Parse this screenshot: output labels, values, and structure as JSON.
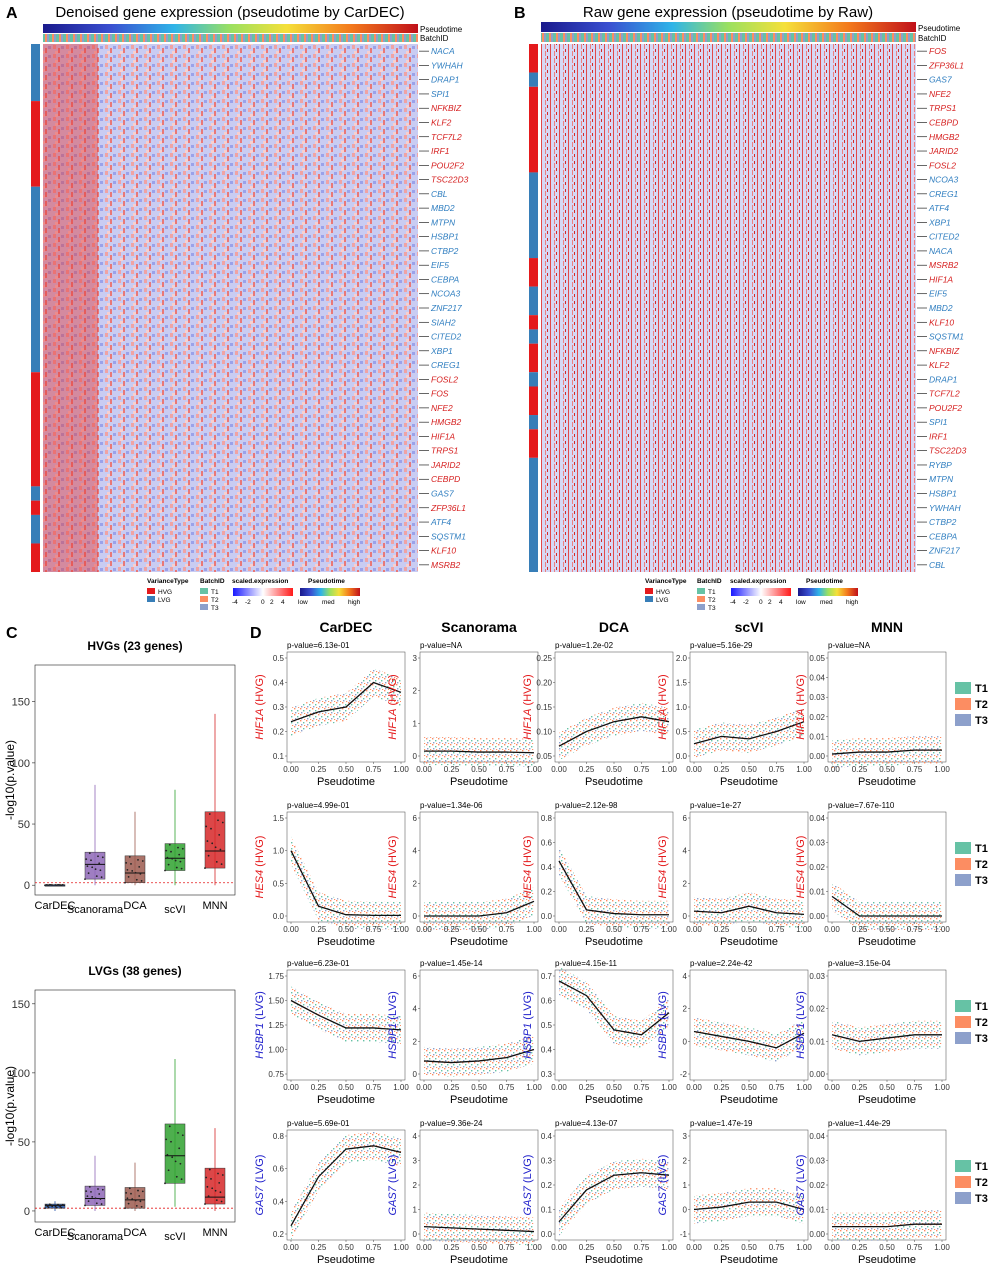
{
  "panel_letters": [
    "A",
    "B",
    "C",
    "D"
  ],
  "panel_a": {
    "title": "Denoised gene expression (pseudotime by CarDEC)",
    "annotation_labels": [
      "Pseudotime",
      "BatchID"
    ],
    "genes": [
      {
        "name": "NACA",
        "type": "LVG"
      },
      {
        "name": "YWHAH",
        "type": "LVG"
      },
      {
        "name": "DRAP1",
        "type": "LVG"
      },
      {
        "name": "SPI1",
        "type": "LVG"
      },
      {
        "name": "NFKBIZ",
        "type": "HVG"
      },
      {
        "name": "KLF2",
        "type": "HVG"
      },
      {
        "name": "TCF7L2",
        "type": "HVG"
      },
      {
        "name": "IRF1",
        "type": "HVG"
      },
      {
        "name": "POU2F2",
        "type": "HVG"
      },
      {
        "name": "TSC22D3",
        "type": "HVG"
      },
      {
        "name": "CBL",
        "type": "LVG"
      },
      {
        "name": "MBD2",
        "type": "LVG"
      },
      {
        "name": "MTPN",
        "type": "LVG"
      },
      {
        "name": "HSBP1",
        "type": "LVG"
      },
      {
        "name": "CTBP2",
        "type": "LVG"
      },
      {
        "name": "EIF5",
        "type": "LVG"
      },
      {
        "name": "CEBPA",
        "type": "LVG"
      },
      {
        "name": "NCOA3",
        "type": "LVG"
      },
      {
        "name": "ZNF217",
        "type": "LVG"
      },
      {
        "name": "SIAH2",
        "type": "LVG"
      },
      {
        "name": "CITED2",
        "type": "LVG"
      },
      {
        "name": "XBP1",
        "type": "LVG"
      },
      {
        "name": "CREG1",
        "type": "LVG"
      },
      {
        "name": "FOSL2",
        "type": "HVG"
      },
      {
        "name": "FOS",
        "type": "HVG"
      },
      {
        "name": "NFE2",
        "type": "HVG"
      },
      {
        "name": "HMGB2",
        "type": "HVG"
      },
      {
        "name": "HIF1A",
        "type": "HVG"
      },
      {
        "name": "TRPS1",
        "type": "HVG"
      },
      {
        "name": "JARID2",
        "type": "HVG"
      },
      {
        "name": "CEBPD",
        "type": "HVG"
      },
      {
        "name": "GAS7",
        "type": "LVG"
      },
      {
        "name": "ZFP36L1",
        "type": "HVG"
      },
      {
        "name": "ATF4",
        "type": "LVG"
      },
      {
        "name": "SQSTM1",
        "type": "LVG"
      },
      {
        "name": "KLF10",
        "type": "HVG"
      },
      {
        "name": "MSRB2",
        "type": "HVG"
      }
    ]
  },
  "panel_b": {
    "title": "Raw gene expression (pseudotime by Raw)",
    "annotation_labels": [
      "Pseudotime",
      "BatchID"
    ],
    "genes": [
      {
        "name": "FOS",
        "type": "HVG"
      },
      {
        "name": "ZFP36L1",
        "type": "HVG"
      },
      {
        "name": "GAS7",
        "type": "LVG"
      },
      {
        "name": "NFE2",
        "type": "HVG"
      },
      {
        "name": "TRPS1",
        "type": "HVG"
      },
      {
        "name": "CEBPD",
        "type": "HVG"
      },
      {
        "name": "HMGB2",
        "type": "HVG"
      },
      {
        "name": "JARID2",
        "type": "HVG"
      },
      {
        "name": "FOSL2",
        "type": "HVG"
      },
      {
        "name": "NCOA3",
        "type": "LVG"
      },
      {
        "name": "CREG1",
        "type": "LVG"
      },
      {
        "name": "ATF4",
        "type": "LVG"
      },
      {
        "name": "XBP1",
        "type": "LVG"
      },
      {
        "name": "CITED2",
        "type": "LVG"
      },
      {
        "name": "NACA",
        "type": "LVG"
      },
      {
        "name": "MSRB2",
        "type": "HVG"
      },
      {
        "name": "HIF1A",
        "type": "HVG"
      },
      {
        "name": "EIF5",
        "type": "LVG"
      },
      {
        "name": "MBD2",
        "type": "LVG"
      },
      {
        "name": "KLF10",
        "type": "HVG"
      },
      {
        "name": "SQSTM1",
        "type": "LVG"
      },
      {
        "name": "NFKBIZ",
        "type": "HVG"
      },
      {
        "name": "KLF2",
        "type": "HVG"
      },
      {
        "name": "DRAP1",
        "type": "LVG"
      },
      {
        "name": "TCF7L2",
        "type": "HVG"
      },
      {
        "name": "POU2F2",
        "type": "HVG"
      },
      {
        "name": "SPI1",
        "type": "LVG"
      },
      {
        "name": "IRF1",
        "type": "HVG"
      },
      {
        "name": "TSC22D3",
        "type": "HVG"
      },
      {
        "name": "RYBP",
        "type": "LVG"
      },
      {
        "name": "MTPN",
        "type": "LVG"
      },
      {
        "name": "HSBP1",
        "type": "LVG"
      },
      {
        "name": "YWHAH",
        "type": "LVG"
      },
      {
        "name": "CTBP2",
        "type": "LVG"
      },
      {
        "name": "CEBPA",
        "type": "LVG"
      },
      {
        "name": "ZNF217",
        "type": "LVG"
      },
      {
        "name": "CBL",
        "type": "LVG"
      }
    ]
  },
  "legend": {
    "variance_title": "VarianceType",
    "variance_items": [
      {
        "label": "HVG",
        "color": "#e41a1c"
      },
      {
        "label": "LVG",
        "color": "#377eb8"
      }
    ],
    "batch_title": "BatchID",
    "batch_items": [
      {
        "label": "T1",
        "color": "#66c2a5"
      },
      {
        "label": "T2",
        "color": "#fc8d62"
      },
      {
        "label": "T3",
        "color": "#8da0cb"
      }
    ],
    "expr_title": "scaled.expression",
    "expr_ticks": [
      "-4",
      "-2",
      "0",
      "2",
      "4"
    ],
    "pseudo_title": "Pseudotime",
    "pseudo_ticks": [
      "low",
      "med",
      "high"
    ]
  },
  "chart_data": [
    {
      "type": "box",
      "panel": "C",
      "title": "HVGs (23 genes)",
      "ylabel": "-log10(p.value)",
      "ylim": [
        -8,
        180
      ],
      "yticks": [
        0,
        50,
        100,
        150
      ],
      "categories": [
        "CarDEC",
        "Scanorama",
        "DCA",
        "scVI",
        "MNN"
      ],
      "colors": [
        "#1f4fa8",
        "#8e67b7",
        "#9c5a4f",
        "#2fa12f",
        "#d62728"
      ],
      "box": [
        {
          "min": 0.0,
          "q1": 0.0,
          "median": 0.1,
          "q3": 0.4,
          "max": 0.9
        },
        {
          "min": 0,
          "q1": 5,
          "median": 17,
          "q3": 27,
          "max": 82
        },
        {
          "min": 0,
          "q1": 2,
          "median": 10,
          "q3": 24,
          "max": 60
        },
        {
          "min": 0,
          "q1": 12,
          "median": 22,
          "q3": 34,
          "max": 78
        },
        {
          "min": 0,
          "q1": 14,
          "median": 28,
          "q3": 60,
          "max": 140
        }
      ],
      "threshold": 2
    },
    {
      "type": "box",
      "panel": "C",
      "title": "LVGs (38 genes)",
      "ylabel": "-log10(p.value)",
      "ylim": [
        -8,
        160
      ],
      "yticks": [
        0,
        50,
        100,
        150
      ],
      "categories": [
        "CarDEC",
        "Scanorama",
        "DCA",
        "scVI",
        "MNN"
      ],
      "colors": [
        "#1f4fa8",
        "#8e67b7",
        "#9c5a4f",
        "#2fa12f",
        "#d62728"
      ],
      "box": [
        {
          "min": 0,
          "q1": 2,
          "median": 4,
          "q3": 5,
          "max": 7
        },
        {
          "min": 0,
          "q1": 4,
          "median": 9,
          "q3": 18,
          "max": 40
        },
        {
          "min": 0,
          "q1": 2,
          "median": 8,
          "q3": 17,
          "max": 35
        },
        {
          "min": 3,
          "q1": 20,
          "median": 40,
          "q3": 63,
          "max": 110
        },
        {
          "min": 0,
          "q1": 5,
          "median": 10,
          "q3": 31,
          "max": 60
        }
      ],
      "threshold": 2
    },
    {
      "type": "scatter-grid",
      "panel": "D",
      "methods": [
        "CarDEC",
        "Scanorama",
        "DCA",
        "scVI",
        "MNN"
      ],
      "xlabel": "Pseudotime",
      "xticks": [
        "0.00",
        "0.25",
        "0.50",
        "0.75",
        "1.00"
      ],
      "legend": [
        "T1",
        "T2",
        "T3"
      ],
      "rows": [
        {
          "gene": "HIF1A",
          "type": "HVG",
          "label_color": "#e41a1c",
          "pvalues": [
            "p-value=6.13e-01",
            "p-value=NA",
            "p-value=1.2e-02",
            "p-value=5.16e-29",
            "p-value=NA"
          ],
          "yticks": [
            [
              "0.1",
              "0.2",
              "0.3",
              "0.4",
              "0.5"
            ],
            [
              "0",
              "1",
              "2",
              "3"
            ],
            [
              "0.05",
              "0.10",
              "0.15",
              "0.20",
              "0.25"
            ],
            [
              "0.0",
              "0.5",
              "1.0",
              "1.5",
              "2.0"
            ],
            [
              "0.00",
              "0.01",
              "0.02",
              "0.03",
              "0.04",
              "0.05"
            ]
          ],
          "trend": [
            [
              0.24,
              0.28,
              0.3,
              0.4,
              0.36
            ],
            [
              0.15,
              0.15,
              0.12,
              0.12,
              0.1
            ],
            [
              0.07,
              0.1,
              0.12,
              0.13,
              0.12
            ],
            [
              0.25,
              0.4,
              0.35,
              0.5,
              0.7
            ],
            [
              0.001,
              0.002,
              0.002,
              0.003,
              0.003
            ]
          ]
        },
        {
          "gene": "HES4",
          "type": "HVG",
          "label_color": "#e41a1c",
          "pvalues": [
            "p-value=4.99e-01",
            "p-value=1.34e-06",
            "p-value=2.12e-98",
            "p-value=1e-27",
            "p-value=7.67e-110"
          ],
          "yticks": [
            [
              "0.0",
              "0.5",
              "1.0",
              "1.5"
            ],
            [
              "0",
              "2",
              "4",
              "6"
            ],
            [
              "0.0",
              "0.2",
              "0.4",
              "0.6",
              "0.8"
            ],
            [
              "0",
              "2",
              "4",
              "6"
            ],
            [
              "0.00",
              "0.01",
              "0.02",
              "0.03",
              "0.04"
            ]
          ],
          "trend": [
            [
              1.0,
              0.15,
              0.02,
              0.01,
              0.01
            ],
            [
              0.0,
              0.0,
              0.0,
              0.2,
              0.9
            ],
            [
              0.45,
              0.05,
              0.02,
              0.01,
              0.01
            ],
            [
              0.3,
              0.2,
              0.6,
              0.2,
              0.1
            ],
            [
              0.008,
              0.0,
              0.0,
              0.0,
              0.0
            ]
          ]
        },
        {
          "gene": "HSBP1",
          "type": "LVG",
          "label_color": "#2222cc",
          "pvalues": [
            "p-value=6.23e-01",
            "p-value=1.45e-14",
            "p-value=4.15e-11",
            "p-value=2.24e-42",
            "p-value=3.15e-04"
          ],
          "yticks": [
            [
              "0.75",
              "1.00",
              "1.25",
              "1.50",
              "1.75"
            ],
            [
              "0",
              "2",
              "4",
              "6"
            ],
            [
              "0.3",
              "0.4",
              "0.5",
              "0.6",
              "0.7"
            ],
            [
              "-2",
              "0",
              "2",
              "4"
            ],
            [
              "0.00",
              "0.01",
              "0.02",
              "0.03"
            ]
          ],
          "trend": [
            [
              1.5,
              1.35,
              1.22,
              1.22,
              1.2
            ],
            [
              0.8,
              0.7,
              0.8,
              1.0,
              1.5
            ],
            [
              0.68,
              0.62,
              0.48,
              0.46,
              0.55
            ],
            [
              0.6,
              0.3,
              0.0,
              -0.4,
              0.5
            ],
            [
              0.012,
              0.01,
              0.011,
              0.012,
              0.012
            ]
          ]
        },
        {
          "gene": "GAS7",
          "type": "LVG",
          "label_color": "#2222cc",
          "pvalues": [
            "p-value=5.69e-01",
            "p-value=9.36e-24",
            "p-value=4.13e-07",
            "p-value=1.47e-19",
            "p-value=1.44e-29"
          ],
          "yticks": [
            [
              "0.2",
              "0.4",
              "0.6",
              "0.8"
            ],
            [
              "0",
              "1",
              "2",
              "3",
              "4"
            ],
            [
              "0.0",
              "0.1",
              "0.2",
              "0.3",
              "0.4"
            ],
            [
              "-1",
              "0",
              "1",
              "2",
              "3"
            ],
            [
              "0.00",
              "0.01",
              "0.02",
              "0.03",
              "0.04"
            ]
          ],
          "trend": [
            [
              0.25,
              0.55,
              0.72,
              0.74,
              0.7
            ],
            [
              0.3,
              0.25,
              0.2,
              0.15,
              0.1
            ],
            [
              0.05,
              0.18,
              0.24,
              0.25,
              0.24
            ],
            [
              0.0,
              0.1,
              0.3,
              0.3,
              0.0
            ],
            [
              0.003,
              0.003,
              0.003,
              0.004,
              0.004
            ]
          ]
        }
      ]
    }
  ]
}
